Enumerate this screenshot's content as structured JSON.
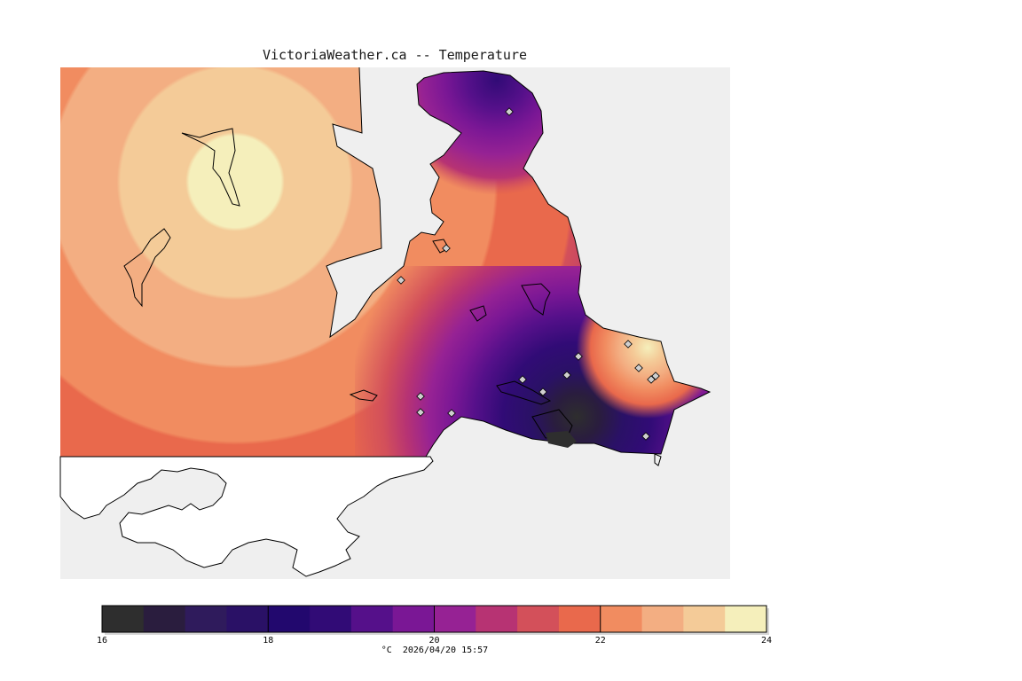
{
  "title": "VictoriaWeather.ca -- Temperature",
  "colorbar": {
    "colors": [
      "#2e2e2e",
      "#2a1d3e",
      "#2f1b5c",
      "#2a1166",
      "#22086e",
      "#310b76",
      "#55108a",
      "#7a1795",
      "#962294",
      "#b73373",
      "#d3505a",
      "#e9694c",
      "#f18c60",
      "#f3ae82",
      "#f4cb98",
      "#f5efbb"
    ],
    "tick_labels": [
      "16",
      "18",
      "20",
      "22",
      "24"
    ],
    "units": "°C  2026/04/20 15:57"
  },
  "map": {
    "ocean_color": "#efefef",
    "land_color": "#ffffff",
    "coast_color": "#000000",
    "marker_color": "#cfcfcf"
  }
}
